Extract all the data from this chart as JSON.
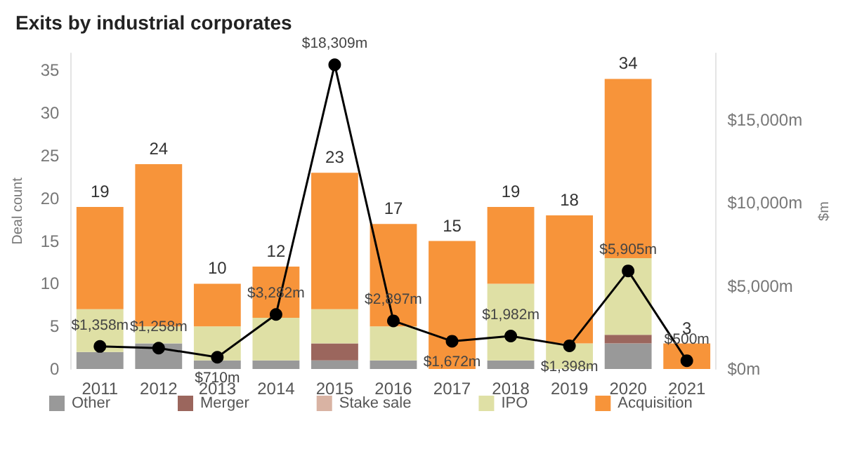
{
  "chart_data": {
    "type": "bar",
    "title": "Exits by industrial corporates",
    "categories": [
      "2011",
      "2012",
      "2013",
      "2014",
      "2015",
      "2016",
      "2017",
      "2018",
      "2019",
      "2020",
      "2021"
    ],
    "stacked": true,
    "series": [
      {
        "name": "Other",
        "color": "#999999",
        "values": [
          2,
          3,
          1,
          1,
          1,
          1,
          0,
          1,
          0,
          3,
          0
        ]
      },
      {
        "name": "Merger",
        "color": "#9b665d",
        "values": [
          0,
          0,
          0,
          0,
          2,
          0,
          0,
          0,
          0,
          1,
          0
        ]
      },
      {
        "name": "Stake sale",
        "color": "#d9b3a3",
        "values": [
          0,
          0,
          0,
          0,
          0,
          0,
          0,
          0,
          0,
          0,
          0
        ]
      },
      {
        "name": "IPO",
        "color": "#dfe0a5",
        "values": [
          5,
          2,
          4,
          5,
          4,
          4,
          0,
          9,
          3,
          9,
          0
        ]
      },
      {
        "name": "Acquisition",
        "color": "#f7943a",
        "values": [
          12,
          19,
          5,
          6,
          16,
          12,
          15,
          9,
          15,
          21,
          3
        ]
      },
      {
        "type": "line",
        "axis": "y2",
        "color": "#000000",
        "marker": "circle",
        "values": [
          1358,
          1258,
          710,
          3282,
          18309,
          2897,
          1672,
          1982,
          1398,
          5905,
          500
        ],
        "value_labels": [
          "$1,358m",
          "$1,258m",
          "$710m",
          "$3,282m",
          "$18,309m",
          "$2,897m",
          "$1,672m",
          "$1,982m",
          "$1,398m",
          "$5,905m",
          "$500m"
        ]
      }
    ],
    "totals": [
      "19",
      "24",
      "10",
      "12",
      "23",
      "17",
      "15",
      "19",
      "18",
      "34",
      "3"
    ],
    "ylabel": "Deal count",
    "y2label": "$m",
    "ylim": [
      0,
      37
    ],
    "yticks": [
      0,
      5,
      10,
      15,
      20,
      25,
      30,
      35
    ],
    "y2lim": [
      0,
      19000
    ],
    "y2ticks": [
      {
        "value": 0,
        "label": "$0m"
      },
      {
        "value": 5000,
        "label": "$5,000m"
      },
      {
        "value": 10000,
        "label": "$10,000m"
      },
      {
        "value": 15000,
        "label": "$15,000m"
      }
    ],
    "grid": false,
    "legend": "bottom"
  }
}
